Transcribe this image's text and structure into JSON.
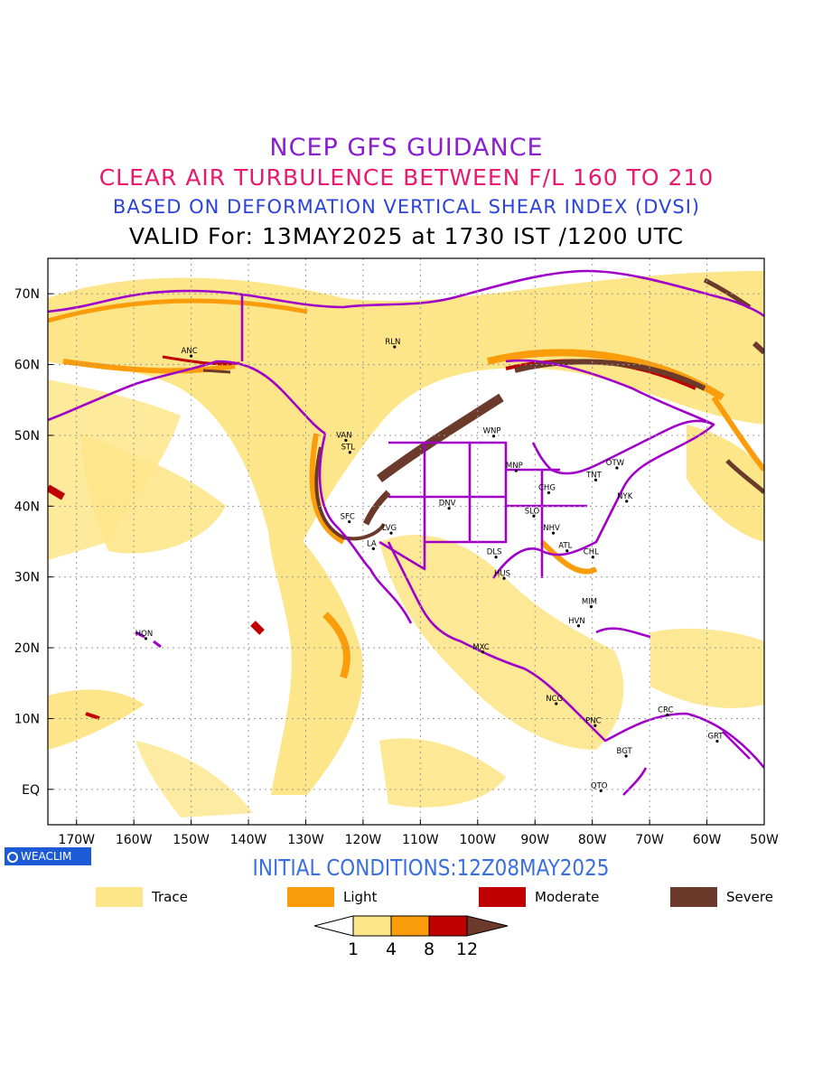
{
  "titles": {
    "line1": "NCEP GFS GUIDANCE",
    "line2": "CLEAR AIR TURBULENCE BETWEEN F/L 160 TO 210",
    "line3": "BASED ON DEFORMATION VERTICAL SHEAR INDEX (DVSI)",
    "line4": "VALID For: 13MAY2025 at 1730 IST /1200 UTC"
  },
  "colors": {
    "line1": "#8a1fd0",
    "line2": "#e8196e",
    "line3": "#2b43d8",
    "line4": "#000000",
    "trace": "#fde68a",
    "light": "#fb9d0b",
    "moderate": "#c00000",
    "severe": "#6b3a2a",
    "borders": "#a000c8",
    "initial": "#3a6fe0",
    "badge": "#1d5bd6"
  },
  "map": {
    "lon_range": [
      -175,
      -50
    ],
    "lat_range": [
      -5,
      75
    ],
    "x_ticks": [
      "170W",
      "160W",
      "150W",
      "140W",
      "130W",
      "120W",
      "110W",
      "100W",
      "90W",
      "80W",
      "70W",
      "60W",
      "50W"
    ],
    "y_ticks": [
      "70N",
      "60N",
      "50N",
      "40N",
      "30N",
      "20N",
      "10N",
      "EQ"
    ],
    "stations": [
      {
        "name": "ANC",
        "lon": -150,
        "lat": 61.2
      },
      {
        "name": "RLN",
        "lon": -114.5,
        "lat": 62.5
      },
      {
        "name": "VAN",
        "lon": -123,
        "lat": 49.3
      },
      {
        "name": "STL",
        "lon": -122.3,
        "lat": 47.6
      },
      {
        "name": "WNP",
        "lon": -97.2,
        "lat": 49.9
      },
      {
        "name": "MNP",
        "lon": -93.3,
        "lat": 45
      },
      {
        "name": "OTW",
        "lon": -75.7,
        "lat": 45.4
      },
      {
        "name": "TNT",
        "lon": -79.4,
        "lat": 43.7
      },
      {
        "name": "CHG",
        "lon": -87.6,
        "lat": 41.9
      },
      {
        "name": "NYK",
        "lon": -74,
        "lat": 40.7
      },
      {
        "name": "DNV",
        "lon": -105,
        "lat": 39.7
      },
      {
        "name": "SFC",
        "lon": -122.4,
        "lat": 37.8
      },
      {
        "name": "SLO",
        "lon": -90.2,
        "lat": 38.6
      },
      {
        "name": "LVG",
        "lon": -115.1,
        "lat": 36.2
      },
      {
        "name": "NHV",
        "lon": -86.8,
        "lat": 36.2
      },
      {
        "name": "LA",
        "lon": -118.2,
        "lat": 34
      },
      {
        "name": "ATL",
        "lon": -84.4,
        "lat": 33.7
      },
      {
        "name": "DLS",
        "lon": -96.8,
        "lat": 32.8
      },
      {
        "name": "CHL",
        "lon": -79.9,
        "lat": 32.8
      },
      {
        "name": "HUS",
        "lon": -95.4,
        "lat": 29.8
      },
      {
        "name": "MIM",
        "lon": -80.2,
        "lat": 25.8
      },
      {
        "name": "HVN",
        "lon": -82.4,
        "lat": 23.1
      },
      {
        "name": "HON",
        "lon": -157.9,
        "lat": 21.3
      },
      {
        "name": "MXC",
        "lon": -99.1,
        "lat": 19.4
      },
      {
        "name": "NCG",
        "lon": -86.3,
        "lat": 12.1
      },
      {
        "name": "CRC",
        "lon": -66.9,
        "lat": 10.5
      },
      {
        "name": "PNC",
        "lon": -79.5,
        "lat": 9
      },
      {
        "name": "GRT",
        "lon": -58.2,
        "lat": 6.8
      },
      {
        "name": "BGT",
        "lon": -74.1,
        "lat": 4.7
      },
      {
        "name": "QTO",
        "lon": -78.5,
        "lat": -0.2
      }
    ]
  },
  "badge": "WEACLIM",
  "initial_conditions": "INITIAL CONDITIONS:12Z08MAY2025",
  "legend": [
    {
      "label": "Trace",
      "color": "#fde68a"
    },
    {
      "label": "Light",
      "color": "#fb9d0b"
    },
    {
      "label": "Moderate",
      "color": "#c00000"
    },
    {
      "label": "Severe",
      "color": "#6b3a2a"
    }
  ],
  "colorbar": {
    "ticks": [
      "1",
      "4",
      "8",
      "12"
    ],
    "colors": [
      "#ffffff",
      "#fde68a",
      "#fb9d0b",
      "#c00000",
      "#6b3a2a"
    ]
  }
}
